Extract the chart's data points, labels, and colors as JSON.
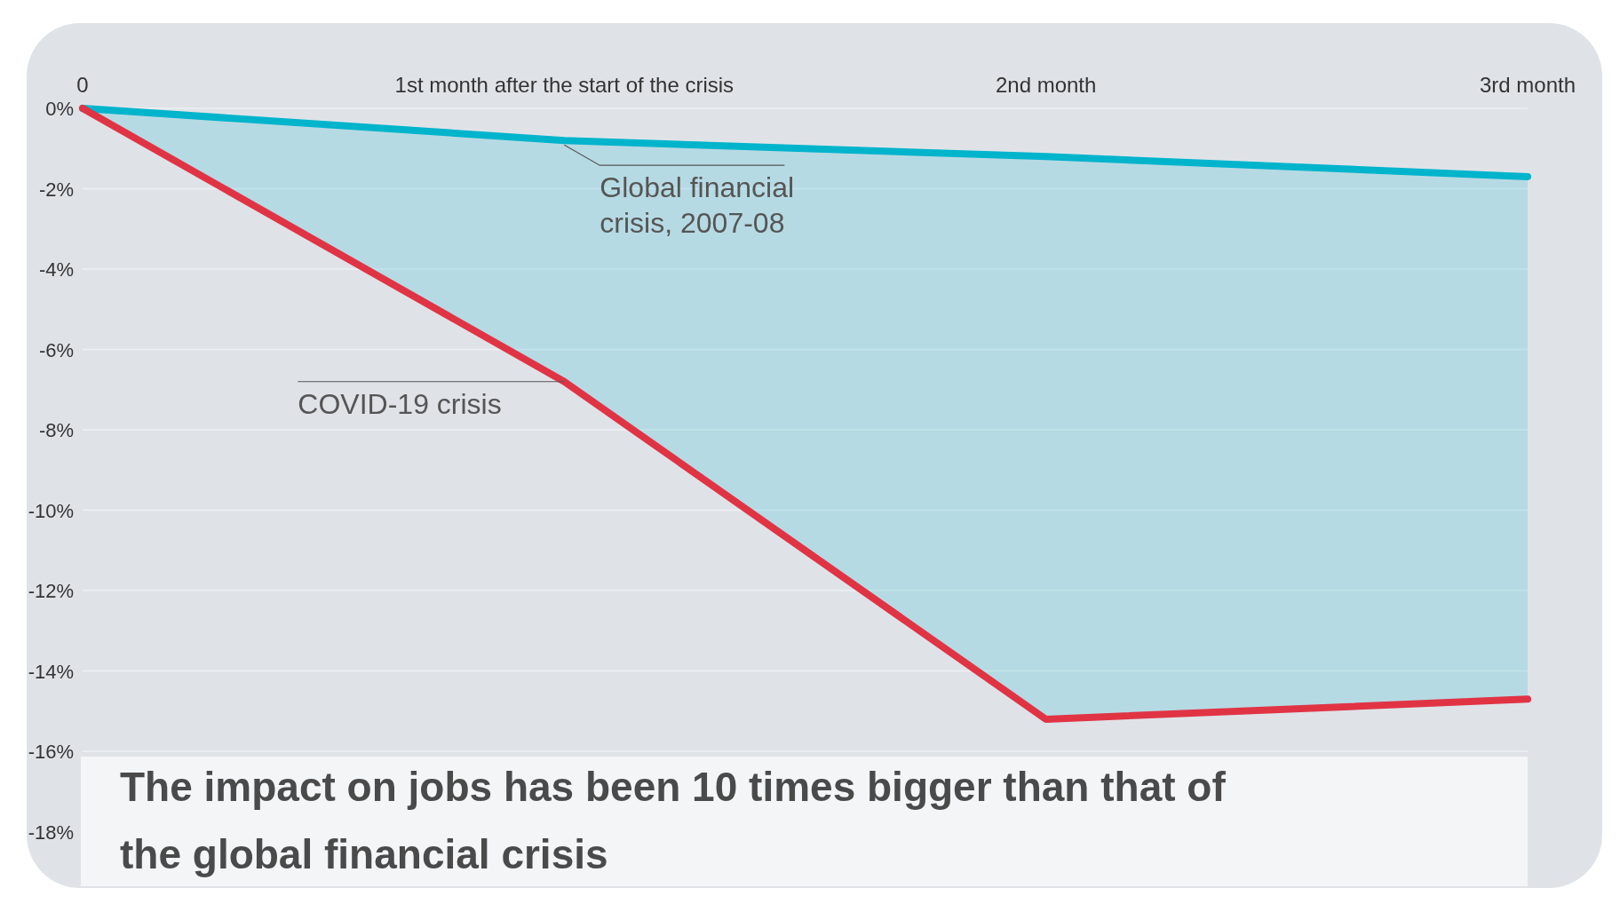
{
  "chart_data": {
    "type": "line",
    "title": "The impact on jobs has been 10 times bigger than that of the global financial crisis",
    "x": [
      0,
      1,
      2,
      3
    ],
    "xlim": [
      0,
      3
    ],
    "xticks": [
      0,
      {
        "value": 1,
        "label": "1st month after the start of the crisis"
      },
      {
        "value": 2,
        "label": "2nd month"
      },
      {
        "value": 3,
        "label": "3rd month"
      }
    ],
    "ylim": [
      -19.4,
      0
    ],
    "yticks": [
      {
        "value": 0,
        "label": "0%"
      },
      {
        "value": -2,
        "label": "-2%"
      },
      {
        "value": -4,
        "label": "-4%"
      },
      {
        "value": -6,
        "label": "-6%"
      },
      {
        "value": -8,
        "label": "-8%"
      },
      {
        "value": -10,
        "label": "-10%"
      },
      {
        "value": -12,
        "label": "-12%"
      },
      {
        "value": -14,
        "label": "-14%"
      },
      {
        "value": -16,
        "label": "-16%"
      },
      {
        "value": -18,
        "label": "-18%"
      }
    ],
    "grid": "y",
    "series": [
      {
        "name": "Global financial crisis, 2007-08",
        "color": "#00b4cc",
        "values": [
          0,
          -0.8,
          -1.2,
          -1.7
        ],
        "lower": [
          0,
          -6.8,
          -15.2,
          -14.7
        ],
        "upper": [
          0,
          -0.8,
          -1.2,
          -1.7
        ]
      },
      {
        "name": "COVID-19 crisis",
        "color": "#e03445",
        "values": [
          0,
          -6.8,
          -15.2,
          -14.7
        ]
      }
    ]
  }
}
